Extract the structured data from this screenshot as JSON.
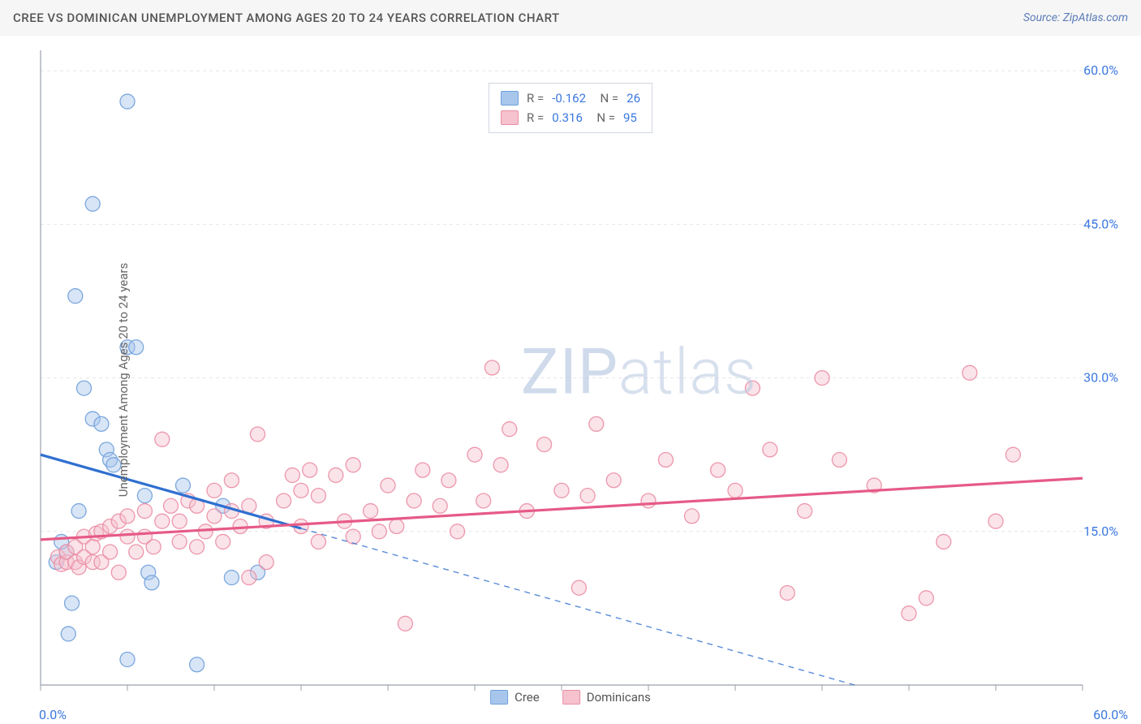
{
  "title": "CREE VS DOMINICAN UNEMPLOYMENT AMONG AGES 20 TO 24 YEARS CORRELATION CHART",
  "source": "Source: ZipAtlas.com",
  "watermark": "ZIPatlas",
  "ylabel": "Unemployment Among Ages 20 to 24 years",
  "chart": {
    "type": "scatter",
    "xlim": [
      0,
      60
    ],
    "ylim": [
      0,
      62
    ],
    "xtick_step": 5,
    "ytick_step": 15,
    "x_min_label": "0.0%",
    "x_max_label": "60.0%",
    "y_ticks": [
      {
        "v": 15,
        "l": "15.0%"
      },
      {
        "v": 30,
        "l": "30.0%"
      },
      {
        "v": 45,
        "l": "45.0%"
      },
      {
        "v": 60,
        "l": "60.0%"
      }
    ],
    "background_color": "#ffffff",
    "grid_color": "#e3e6eb",
    "axis_color": "#9aa1ac",
    "tick_color": "#9aa1ac",
    "label_color": "#3b78e0",
    "marker_radius": 9,
    "marker_opacity": 0.45,
    "marker_stroke_width": 1.3
  },
  "series": [
    {
      "name": "Cree",
      "fill": "#a8c6ec",
      "stroke": "#6fa0db",
      "line_color": "#2f6fd0",
      "R": "-0.162",
      "N": "26",
      "trend": {
        "y_at_x0": 22.5,
        "y_at_x60": -6.3,
        "solid_until_x": 15
      },
      "points": [
        [
          5,
          57
        ],
        [
          3,
          47
        ],
        [
          2,
          38
        ],
        [
          5,
          33
        ],
        [
          5.5,
          33
        ],
        [
          2.5,
          29
        ],
        [
          3,
          26
        ],
        [
          3.5,
          25.5
        ],
        [
          3.8,
          23
        ],
        [
          4,
          22
        ],
        [
          4.2,
          21.5
        ],
        [
          6,
          18.5
        ],
        [
          8.2,
          19.5
        ],
        [
          6.2,
          11
        ],
        [
          6.4,
          10
        ],
        [
          5,
          2.5
        ],
        [
          9,
          2
        ],
        [
          1.5,
          13
        ],
        [
          1.2,
          14
        ],
        [
          2.2,
          17
        ],
        [
          1.8,
          8
        ],
        [
          1.6,
          5
        ],
        [
          0.9,
          12
        ],
        [
          11,
          10.5
        ],
        [
          12.5,
          11
        ],
        [
          10.5,
          17.5
        ]
      ]
    },
    {
      "name": "Dominicans",
      "fill": "#f5c2ce",
      "stroke": "#eb8da4",
      "line_color": "#e65a87",
      "R": "0.316",
      "N": "95",
      "trend": {
        "y_at_x0": 14.2,
        "y_at_x60": 20.2,
        "solid_until_x": 60
      },
      "points": [
        [
          1,
          12.5
        ],
        [
          1.2,
          11.8
        ],
        [
          1.5,
          12
        ],
        [
          1.5,
          13
        ],
        [
          2,
          12
        ],
        [
          2,
          13.5
        ],
        [
          2.2,
          11.5
        ],
        [
          2.5,
          12.5
        ],
        [
          2.5,
          14.5
        ],
        [
          3,
          12
        ],
        [
          3,
          13.5
        ],
        [
          3.2,
          14.8
        ],
        [
          3.5,
          12
        ],
        [
          3.5,
          15
        ],
        [
          4,
          13
        ],
        [
          4,
          15.5
        ],
        [
          4.5,
          11
        ],
        [
          4.5,
          16
        ],
        [
          5,
          14.5
        ],
        [
          5,
          16.5
        ],
        [
          5.5,
          13
        ],
        [
          6,
          14.5
        ],
        [
          6,
          17
        ],
        [
          6.5,
          13.5
        ],
        [
          7,
          16
        ],
        [
          7,
          24
        ],
        [
          7.5,
          17.5
        ],
        [
          8,
          14
        ],
        [
          8,
          16
        ],
        [
          8.5,
          18
        ],
        [
          9,
          13.5
        ],
        [
          9,
          17.5
        ],
        [
          9.5,
          15
        ],
        [
          10,
          16.5
        ],
        [
          10,
          19
        ],
        [
          10.5,
          14
        ],
        [
          11,
          17
        ],
        [
          11,
          20
        ],
        [
          11.5,
          15.5
        ],
        [
          12,
          10.5
        ],
        [
          12,
          17.5
        ],
        [
          12.5,
          24.5
        ],
        [
          13,
          12
        ],
        [
          13,
          16
        ],
        [
          14,
          18
        ],
        [
          14.5,
          20.5
        ],
        [
          15,
          15.5
        ],
        [
          15,
          19
        ],
        [
          15.5,
          21
        ],
        [
          16,
          14
        ],
        [
          16,
          18.5
        ],
        [
          17,
          20.5
        ],
        [
          17.5,
          16
        ],
        [
          18,
          14.5
        ],
        [
          18,
          21.5
        ],
        [
          19,
          17
        ],
        [
          19.5,
          15
        ],
        [
          20,
          19.5
        ],
        [
          20.5,
          15.5
        ],
        [
          21,
          6
        ],
        [
          21.5,
          18
        ],
        [
          22,
          21
        ],
        [
          23,
          17.5
        ],
        [
          23.5,
          20
        ],
        [
          24,
          15
        ],
        [
          25,
          22.5
        ],
        [
          25.5,
          18
        ],
        [
          26,
          31
        ],
        [
          26.5,
          21.5
        ],
        [
          27,
          25
        ],
        [
          28,
          17
        ],
        [
          29,
          23.5
        ],
        [
          30,
          19
        ],
        [
          31,
          9.5
        ],
        [
          31.5,
          18.5
        ],
        [
          32,
          25.5
        ],
        [
          33,
          20
        ],
        [
          35,
          18
        ],
        [
          36,
          22
        ],
        [
          37.5,
          16.5
        ],
        [
          39,
          21
        ],
        [
          40,
          19
        ],
        [
          41,
          29
        ],
        [
          42,
          23
        ],
        [
          43,
          9
        ],
        [
          44,
          17
        ],
        [
          45,
          30
        ],
        [
          46,
          22
        ],
        [
          48,
          19.5
        ],
        [
          50,
          7
        ],
        [
          51,
          8.5
        ],
        [
          52,
          14
        ],
        [
          53.5,
          30.5
        ],
        [
          55,
          16
        ],
        [
          56,
          22.5
        ]
      ]
    }
  ],
  "legend": [
    {
      "label": "Cree",
      "fill": "#a8c6ec",
      "stroke": "#6fa0db"
    },
    {
      "label": "Dominicans",
      "fill": "#f5c2ce",
      "stroke": "#eb8da4"
    }
  ]
}
